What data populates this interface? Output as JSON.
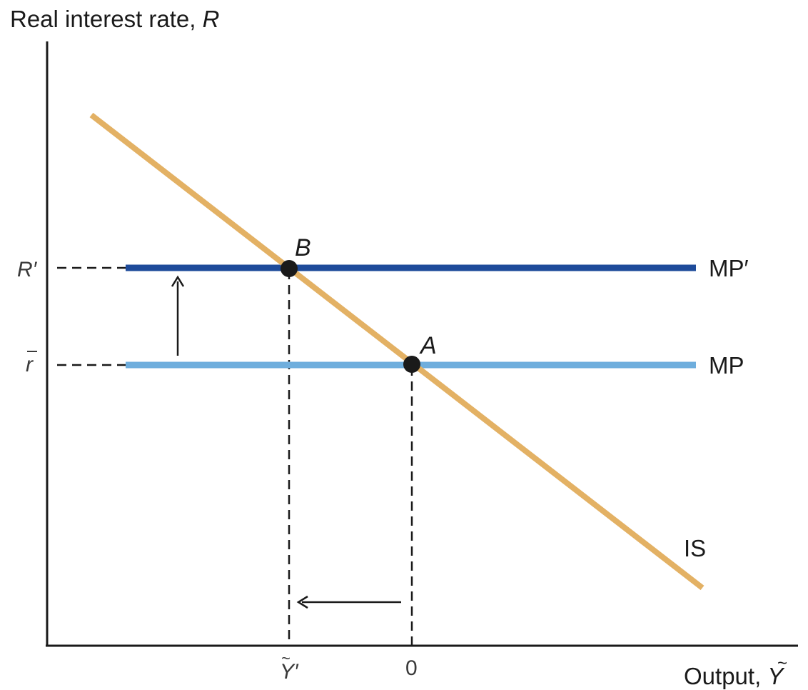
{
  "axes": {
    "y_title": "Real interest rate, ",
    "y_symbol": "R",
    "x_title": "Output, ",
    "x_symbol": "Y"
  },
  "y_ticks": {
    "upper": "R′",
    "lower": "r"
  },
  "x_ticks": {
    "left": "Y′",
    "right": "0"
  },
  "curves": {
    "is_label": "IS",
    "mp_label": "MP",
    "mp_prime_label": "MP′"
  },
  "points": {
    "a_label": "A",
    "b_label": "B"
  },
  "colors": {
    "is": "#E3B164",
    "mp": "#6FAEDD",
    "mp_prime": "#1E4B9A",
    "ink": "#1a1a1a"
  }
}
